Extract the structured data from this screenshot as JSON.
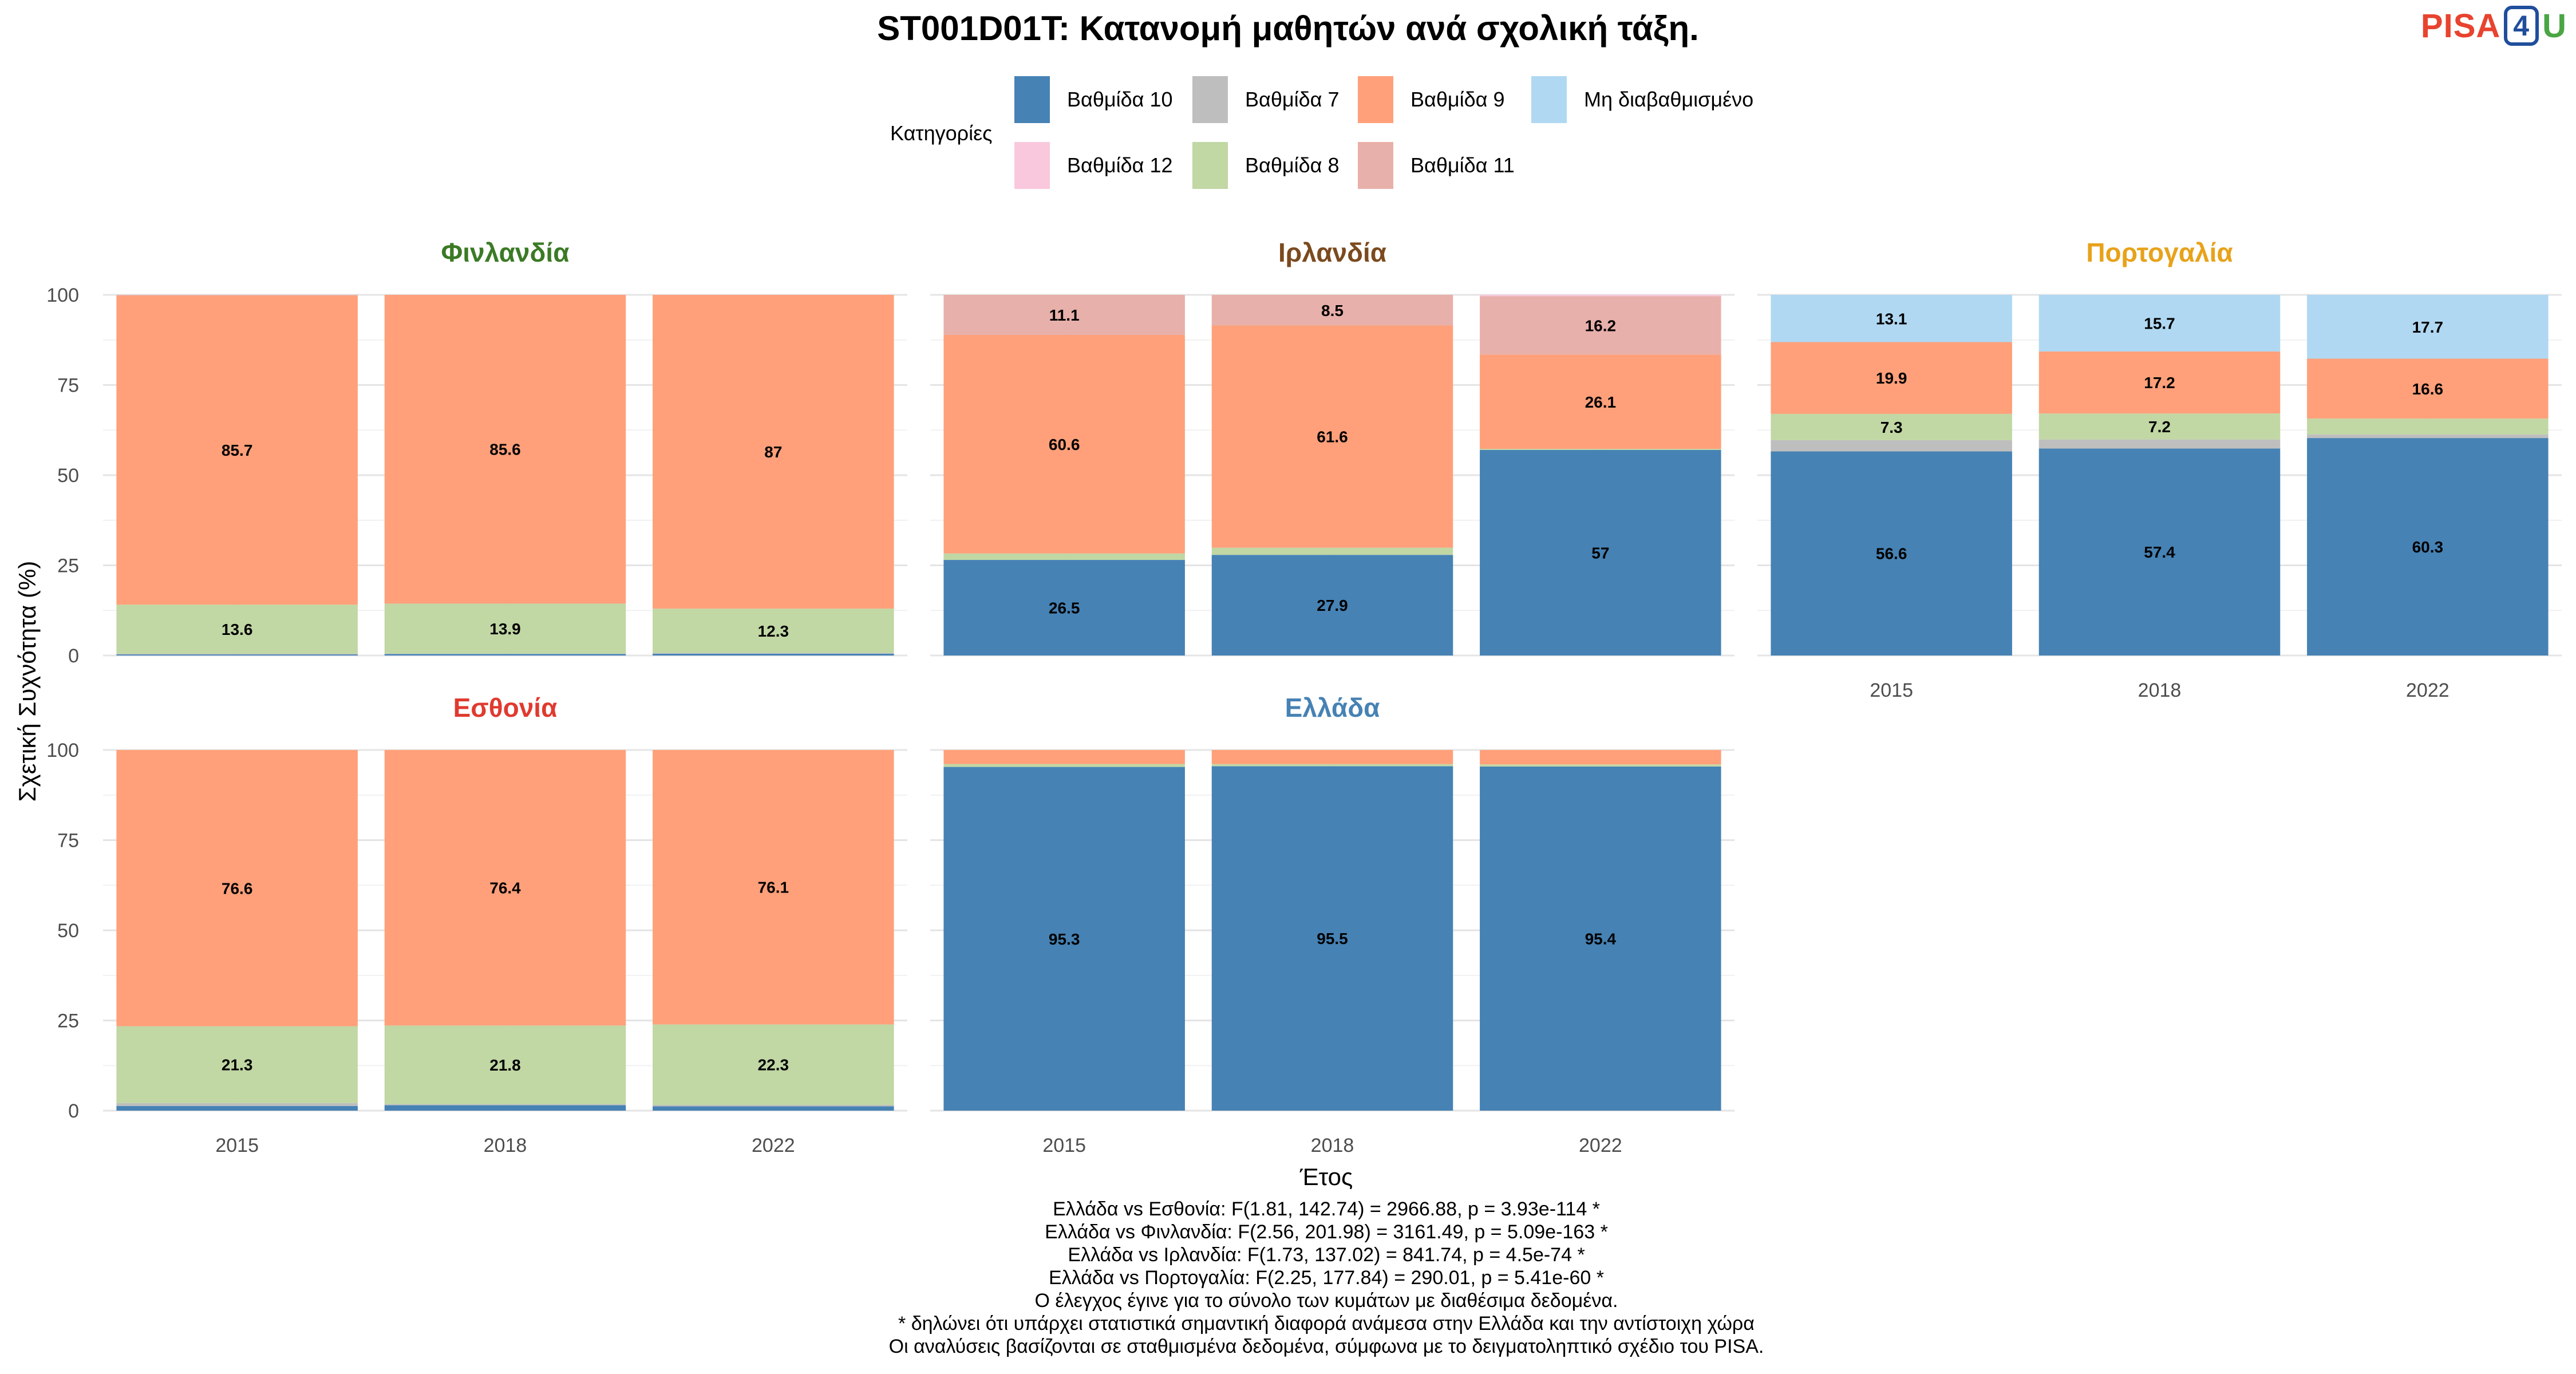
{
  "chart_data": {
    "type": "bar",
    "stacked": true,
    "title": "ST001D01T: Κατανομή μαθητών ανά σχολική τάξη.",
    "xlabel": "Έτος",
    "ylabel": "Σχετική Συχνότητα (%)",
    "ylim": [
      0,
      100
    ],
    "yticks": [
      0,
      25,
      50,
      75,
      100
    ],
    "grid": true,
    "legend": {
      "title": "Κατηγορίες",
      "position": "top",
      "entries": [
        {
          "key": "g10",
          "label": "Βαθμίδα 10",
          "color": "#4682b4"
        },
        {
          "key": "g7",
          "label": "Βαθμίδα 7",
          "color": "#bebebe"
        },
        {
          "key": "g9",
          "label": "Βαθμίδα 9",
          "color": "#ffa07a"
        },
        {
          "key": "ungraded",
          "label": "Μη διαβαθμισμένο",
          "color": "#b0d8f2"
        },
        {
          "key": "g12",
          "label": "Βαθμίδα 12",
          "color": "#f9c8dc"
        },
        {
          "key": "g8",
          "label": "Βαθμίδα 8",
          "color": "#c1d7a4"
        },
        {
          "key": "g11",
          "label": "Βαθμίδα 11",
          "color": "#e8b0aa"
        }
      ]
    },
    "stack_order": [
      "g10",
      "g7",
      "g8",
      "g9",
      "g11",
      "g12",
      "ungraded"
    ],
    "categories": [
      "2015",
      "2018",
      "2022"
    ],
    "panels": [
      {
        "country": "Φινλανδία",
        "color": "#3b7a25",
        "values": [
          {
            "g10": 0.3,
            "g7": 0.2,
            "g8": 13.6,
            "g9": 85.7,
            "g11": 0.2
          },
          {
            "g10": 0.4,
            "g7": 0.1,
            "g8": 13.9,
            "g9": 85.6
          },
          {
            "g10": 0.5,
            "g7": 0.2,
            "g8": 12.3,
            "g9": 87.0
          }
        ],
        "labels": [
          {
            "g8": "13.6",
            "g9": "85.7"
          },
          {
            "g8": "13.9",
            "g9": "85.6"
          },
          {
            "g8": "12.3",
            "g9": "87"
          }
        ]
      },
      {
        "country": "Ιρλανδία",
        "color": "#7b4a1e",
        "values": [
          {
            "g10": 26.5,
            "g8": 1.8,
            "g9": 60.6,
            "g11": 11.1
          },
          {
            "g10": 27.9,
            "g8": 2.0,
            "g9": 61.6,
            "g11": 8.5
          },
          {
            "g10": 57.0,
            "g8": 0.3,
            "g9": 26.1,
            "g11": 16.2,
            "g12": 0.4
          }
        ],
        "labels": [
          {
            "g10": "26.5",
            "g9": "60.6",
            "g11": "11.1"
          },
          {
            "g10": "27.9",
            "g9": "61.6",
            "g11": "8.5"
          },
          {
            "g10": "57",
            "g9": "26.1",
            "g11": "16.2"
          }
        ]
      },
      {
        "country": "Πορτογαλία",
        "color": "#e8a21a",
        "values": [
          {
            "g10": 56.6,
            "g7": 3.1,
            "g8": 7.3,
            "g9": 19.9,
            "ungraded": 13.1
          },
          {
            "g10": 57.4,
            "g7": 2.5,
            "g8": 7.2,
            "g9": 17.2,
            "ungraded": 15.7
          },
          {
            "g10": 60.3,
            "g7": 1.0,
            "g8": 4.4,
            "g9": 16.6,
            "ungraded": 17.7
          }
        ],
        "labels": [
          {
            "g10": "56.6",
            "g8": "7.3",
            "g9": "19.9",
            "ungraded": "13.1"
          },
          {
            "g10": "57.4",
            "g8": "7.2",
            "g9": "17.2",
            "ungraded": "15.7"
          },
          {
            "g10": "60.3",
            "g9": "16.6",
            "ungraded": "17.7"
          }
        ]
      },
      {
        "country": "Εσθονία",
        "color": "#e03a2f",
        "values": [
          {
            "g10": 1.3,
            "g7": 0.8,
            "g8": 21.3,
            "g9": 76.6
          },
          {
            "g10": 1.5,
            "g7": 0.3,
            "g8": 21.8,
            "g9": 76.4
          },
          {
            "g10": 1.2,
            "g7": 0.4,
            "g8": 22.3,
            "g9": 76.1
          }
        ],
        "labels": [
          {
            "g8": "21.3",
            "g9": "76.6"
          },
          {
            "g8": "21.8",
            "g9": "76.4"
          },
          {
            "g8": "22.3",
            "g9": "76.1"
          }
        ]
      },
      {
        "country": "Ελλάδα",
        "color": "#4682b4",
        "values": [
          {
            "g10": 95.3,
            "g8": 0.8,
            "g9": 3.9
          },
          {
            "g10": 95.5,
            "g8": 0.6,
            "g9": 3.9
          },
          {
            "g10": 95.4,
            "g8": 0.6,
            "g9": 4.0
          }
        ],
        "labels": [
          {
            "g10": "95.3"
          },
          {
            "g10": "95.5"
          },
          {
            "g10": "95.4"
          }
        ]
      }
    ],
    "footnotes": [
      "Ελλάδα vs Εσθονία: F(1.81, 142.74) = 2966.88, p = 3.93e-114 *",
      "Ελλάδα vs Φινλανδία: F(2.56, 201.98) = 3161.49, p = 5.09e-163 *",
      "Ελλάδα vs Ιρλανδία: F(1.73, 137.02) = 841.74, p = 4.5e-74 *",
      "Ελλάδα vs Πορτογαλία: F(2.25, 177.84) = 290.01, p = 5.41e-60 *",
      "Ο έλεγχος έγινε για το σύνολο των κυμάτων με διαθέσιμα δεδομένα.",
      "* δηλώνει ότι υπάρχει στατιστικά σημαντική διαφορά ανάμεσα στην Ελλάδα και την αντίστοιχη χώρα",
      "Οι αναλύσεις βασίζονται σε σταθμισμένα δεδομένα, σύμφωνα με το δειγματοληπτικό σχέδιο του PISA."
    ]
  },
  "logo": {
    "text_pisa": "PISA",
    "text_four": "4",
    "text_u": "U"
  }
}
